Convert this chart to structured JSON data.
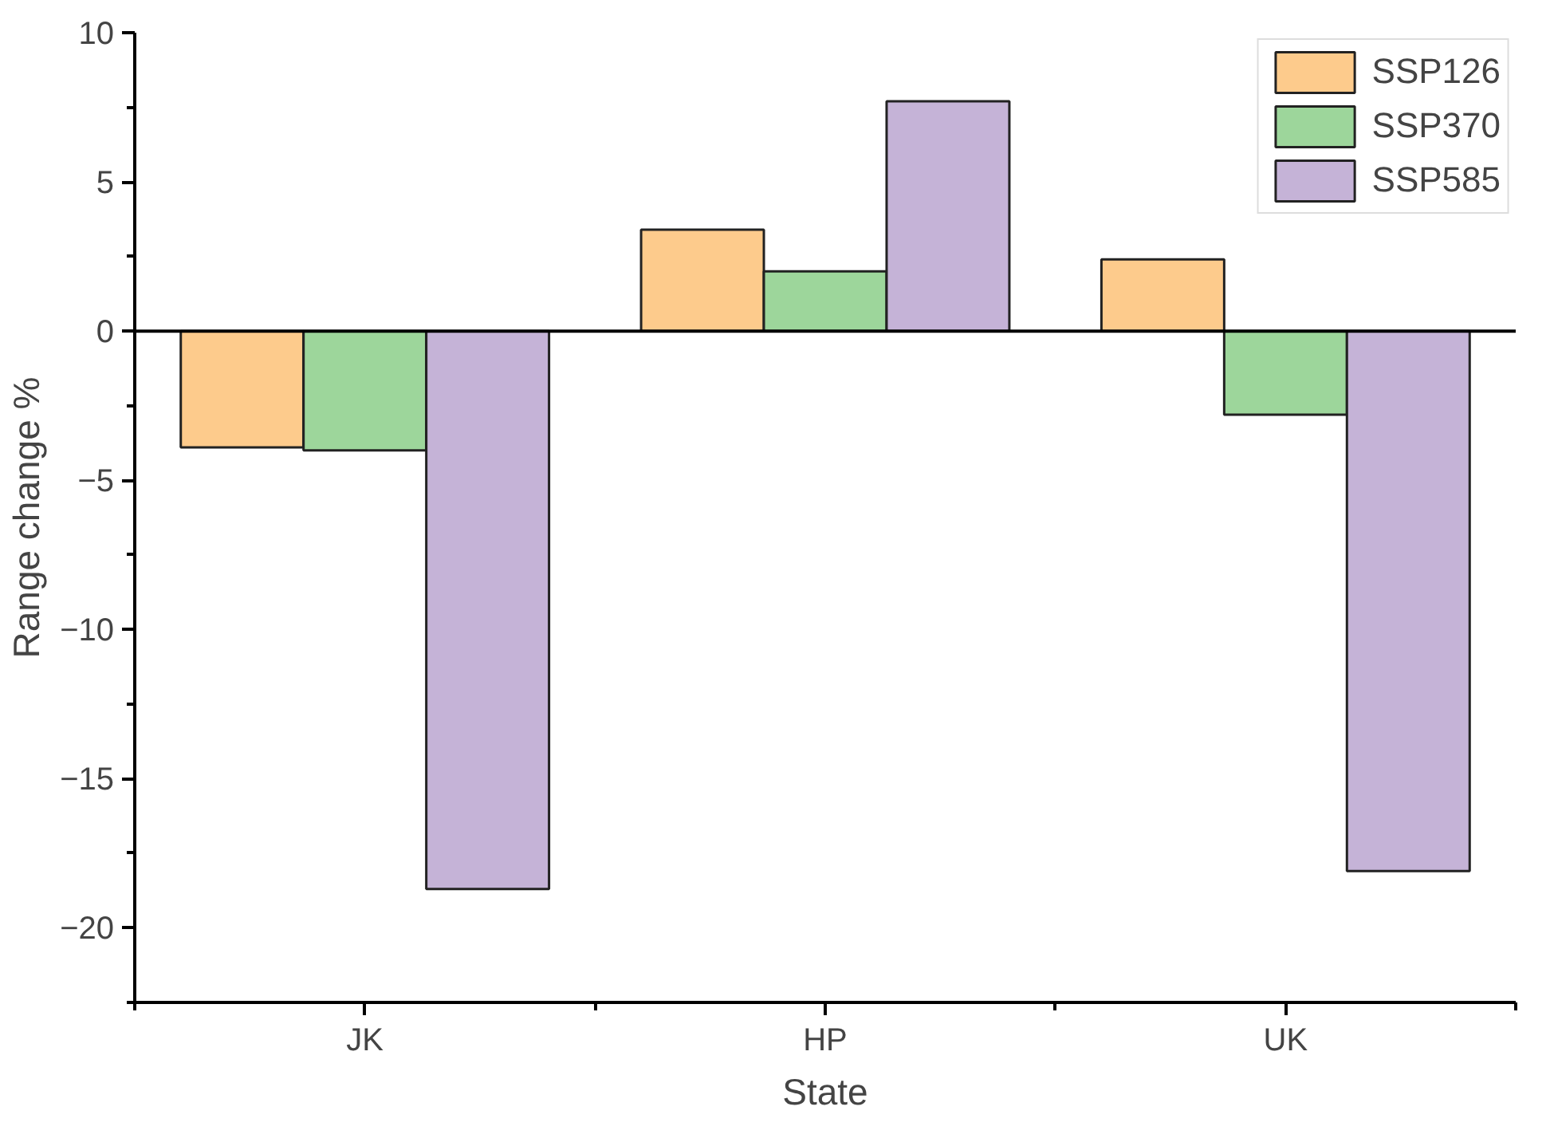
{
  "chart_data": {
    "type": "bar",
    "xlabel": "State",
    "ylabel": "Range change %",
    "categories": [
      "JK",
      "HP",
      "UK"
    ],
    "series": [
      {
        "name": "SSP126",
        "color": "#fdcb8c",
        "values": [
          -3.9,
          3.4,
          2.4
        ]
      },
      {
        "name": "SSP370",
        "color": "#9dd69b",
        "values": [
          -4.0,
          2.0,
          -2.8
        ]
      },
      {
        "name": "SSP585",
        "color": "#c5b3d7",
        "values": [
          -18.7,
          7.7,
          -18.1
        ]
      }
    ],
    "ylim": [
      -22.5,
      10
    ],
    "yticks": [
      {
        "value": -22.5,
        "label": null
      },
      -20,
      {
        "value": -17.5,
        "label": null
      },
      -15,
      {
        "value": -12.5,
        "label": null
      },
      -10,
      {
        "value": -7.5,
        "label": null
      },
      -5,
      {
        "value": -2.5,
        "label": null
      },
      0,
      {
        "value": 2.5,
        "label": null
      },
      5,
      {
        "value": 7.5,
        "label": null
      },
      10
    ],
    "ref_lines": [
      {
        "axis": "y",
        "value": 0,
        "color": "#000000"
      }
    ],
    "grid": false,
    "legend": "top right"
  }
}
